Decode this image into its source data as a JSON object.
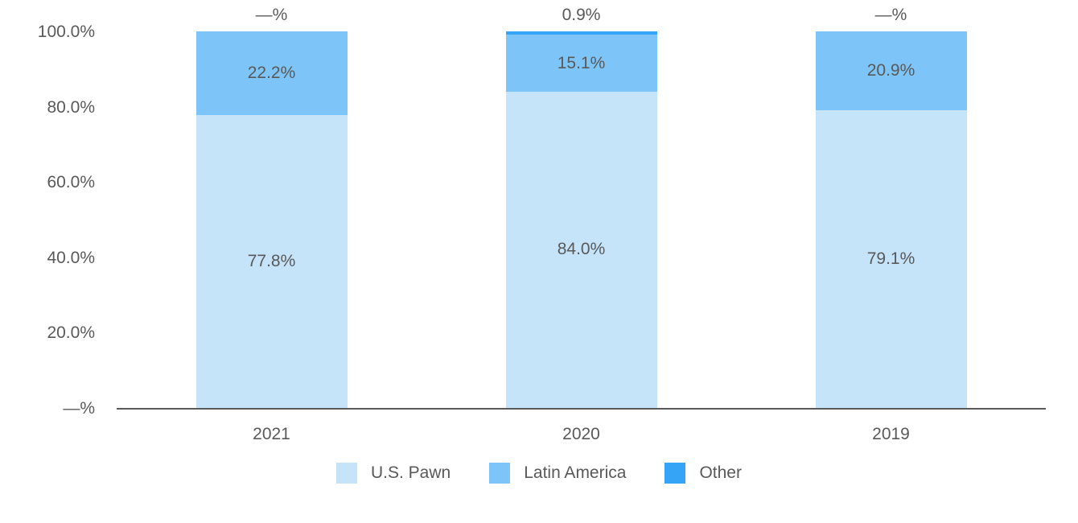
{
  "chart_data": {
    "type": "bar",
    "stacked": true,
    "title": "",
    "xlabel": "",
    "ylabel": "",
    "categories": [
      "2021",
      "2020",
      "2019"
    ],
    "series": [
      {
        "name": "U.S. Pawn",
        "color": "#c5e3f9",
        "values": [
          77.8,
          84.0,
          79.1
        ],
        "labels": [
          "77.8%",
          "84.0%",
          "79.1%"
        ]
      },
      {
        "name": "Latin America",
        "color": "#7dc5f8",
        "values": [
          22.2,
          15.1,
          20.9
        ],
        "labels": [
          "22.2%",
          "15.1%",
          "20.9%"
        ]
      },
      {
        "name": "Other",
        "color": "#35a3f6",
        "values": [
          0.0,
          0.9,
          0.0
        ],
        "labels": [
          "—%",
          "0.9%",
          "—%"
        ]
      }
    ],
    "y_ticks": [
      "—%",
      "20.0%",
      "40.0%",
      "60.0%",
      "80.0%",
      "100.0%"
    ],
    "ylim": [
      0,
      100
    ],
    "grid": false,
    "legend_position": "bottom",
    "text_color": "#595959",
    "axis_color": "#595959"
  }
}
